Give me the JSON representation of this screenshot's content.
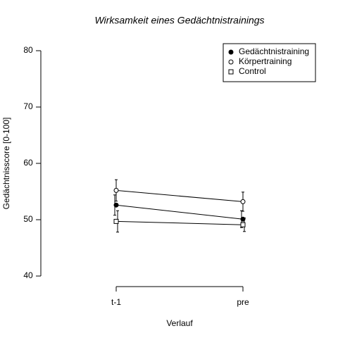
{
  "chart_data": {
    "type": "line",
    "title": "Wirksamkeit eines Gedächtnistrainings",
    "x_label": "Verlauf",
    "y_label": "Gedächtnisscore [0-100]",
    "categories": [
      "t-1",
      "pre"
    ],
    "series": [
      {
        "name": "Gedächtnistraining",
        "color": "#000000",
        "marker": "filled-circle",
        "values": [
          52.6,
          50.1
        ],
        "errors": [
          1.8,
          1.5
        ]
      },
      {
        "name": "Körpertraining",
        "color": "#000000",
        "marker": "circle",
        "values": [
          55.2,
          53.2
        ],
        "errors": [
          1.9,
          1.7
        ]
      },
      {
        "name": "Control",
        "color": "#000000",
        "marker": "square",
        "values": [
          49.7,
          49.1
        ],
        "errors": [
          1.9,
          1.2
        ]
      }
    ],
    "ylim": [
      40,
      80
    ],
    "yticks": [
      40,
      50,
      60,
      70,
      80
    ],
    "grid": false,
    "legend": "top-right"
  }
}
